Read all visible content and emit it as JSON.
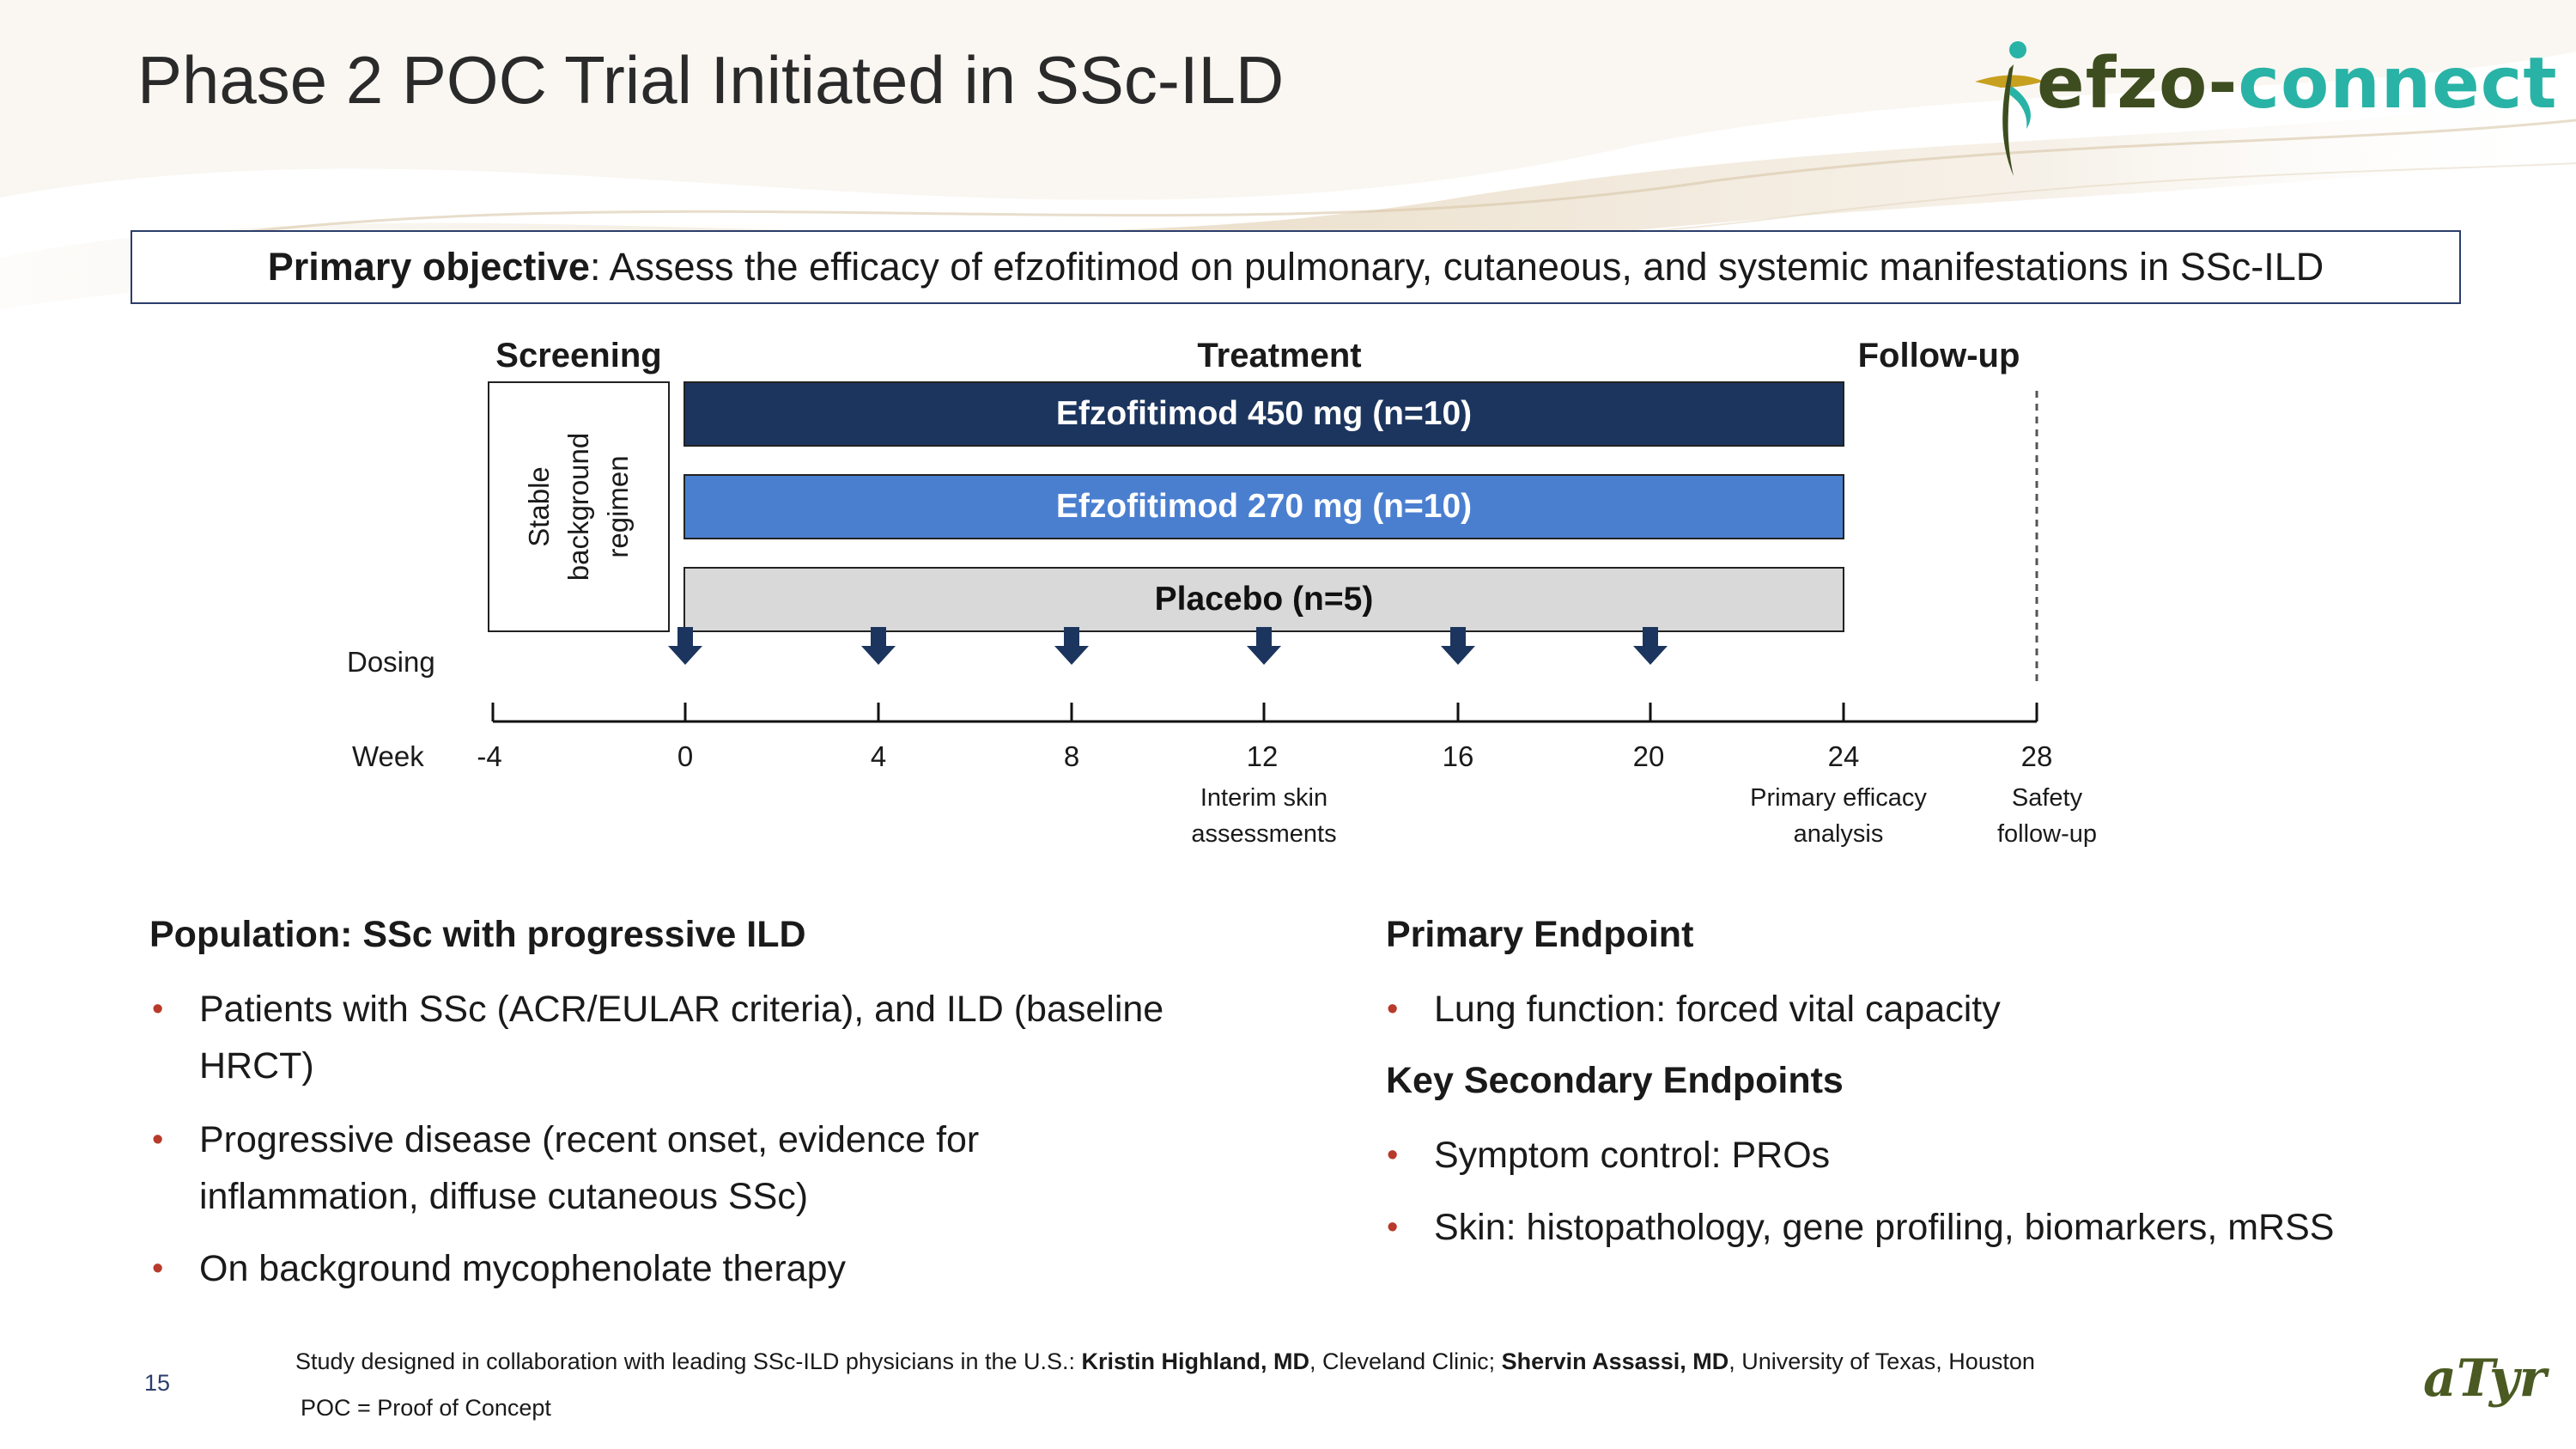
{
  "slide": {
    "title": "Phase 2 POC Trial Initiated in SSc-ILD",
    "page_number": "15"
  },
  "logo": {
    "brand_part1": "efzo",
    "brand_sep": "-",
    "brand_part2": "connect",
    "footer_logo": "aTyr",
    "colors": {
      "dark": "#3e4d1f",
      "teal": "#29b3a6",
      "gold": "#c8a020"
    }
  },
  "objective": {
    "label": "Primary objective",
    "text": ": Assess the efficacy of efzofitimod on pulmonary, cutaneous, and systemic manifestations in SSc-ILD"
  },
  "diagram": {
    "phases": {
      "screening": "Screening",
      "treatment": "Treatment",
      "followup": "Follow-up"
    },
    "stable_regimen": {
      "line1": "Stable",
      "line2": "background",
      "line3": "regimen"
    },
    "arms": [
      {
        "label": "Efzofitimod 450 mg (n=10)",
        "color": "#1c355e"
      },
      {
        "label": "Efzofitimod 270 mg (n=10)",
        "color": "#4a7fd0"
      },
      {
        "label": "Placebo (n=5)",
        "color": "#d9d9d9"
      }
    ],
    "dosing_label": "Dosing",
    "week_label": "Week",
    "weeks": [
      "-4",
      "0",
      "4",
      "8",
      "12",
      "16",
      "20",
      "24",
      "28"
    ],
    "dosing_weeks": [
      0,
      4,
      8,
      12,
      16,
      20
    ],
    "annotations": {
      "week12": {
        "line1": "Interim skin",
        "line2": "assessments"
      },
      "week24": {
        "line1": "Primary efficacy",
        "line2": "analysis"
      },
      "week28": {
        "line1": "Safety",
        "line2": "follow-up"
      }
    }
  },
  "population": {
    "title": "Population: SSc with progressive ILD",
    "bullets": [
      "Patients with SSc (ACR/EULAR criteria), and ILD (baseline HRCT)",
      "Progressive disease (recent onset, evidence for inflammation, diffuse cutaneous SSc)",
      "On background mycophenolate therapy"
    ]
  },
  "endpoints": {
    "primary_title": "Primary Endpoint",
    "primary_bullets": [
      "Lung function: forced vital capacity"
    ],
    "secondary_title": "Key Secondary Endpoints",
    "secondary_bullets": [
      "Symptom control: PROs",
      "Skin: histopathology, gene profiling, biomarkers, mRSS"
    ]
  },
  "footnote": {
    "prefix": "Study designed in collaboration with leading SSc-ILD physicians in the U.S.: ",
    "person1": "Kristin Highland, MD",
    "affil1": ", Cleveland Clinic; ",
    "person2": "Shervin Assassi, MD",
    "affil2": ", University of Texas, Houston",
    "abbrev": "POC = Proof of Concept"
  }
}
